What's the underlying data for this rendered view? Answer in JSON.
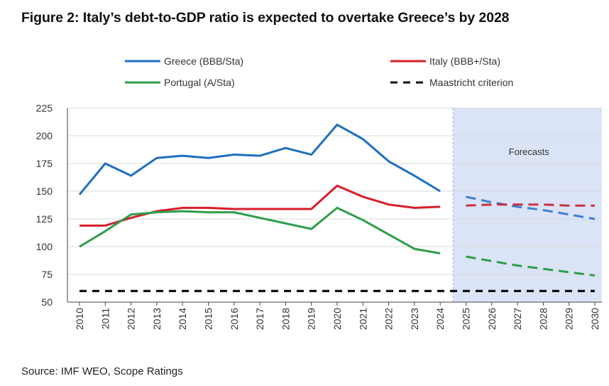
{
  "title": "Figure 2: Italy’s debt-to-GDP ratio is expected to overtake Greece’s by 2028",
  "source": "Source: IMF WEO, Scope Ratings",
  "chart_data": {
    "type": "line",
    "title": "Figure 2: Italy’s debt-to-GDP ratio is expected to overtake Greece’s by 2028",
    "xlabel": "",
    "ylabel": "",
    "ylim": [
      50,
      225
    ],
    "yticks": [
      50,
      75,
      100,
      125,
      150,
      175,
      200,
      225
    ],
    "categories": [
      "2010",
      "2011",
      "2012",
      "2013",
      "2014",
      "2015",
      "2016",
      "2017",
      "2018",
      "2019",
      "2020",
      "2021",
      "2022",
      "2023",
      "2024",
      "2025",
      "2026",
      "2027",
      "2028",
      "2029",
      "2030"
    ],
    "forecast_start": "2025",
    "forecast_label": "Forecasts",
    "grid": true,
    "legend_position": "top",
    "series": [
      {
        "name": "Greece (BBB/Sta)",
        "color": "#1f6fc0",
        "forecast_color": "#3c80d3",
        "style": "solid",
        "values": [
          147,
          175,
          164,
          180,
          182,
          180,
          183,
          182,
          189,
          183,
          210,
          197,
          177,
          164,
          150,
          145,
          140,
          136,
          133,
          129,
          125
        ]
      },
      {
        "name": "Italy (BBB+/Sta)",
        "color": "#d81e2b",
        "forecast_color": "#c93141",
        "style": "solid",
        "values": [
          119,
          119,
          126,
          132,
          135,
          135,
          134,
          134,
          134,
          134,
          155,
          145,
          138,
          135,
          136,
          137,
          138,
          138,
          138,
          137,
          137
        ]
      },
      {
        "name": "Portugal (A/Sta)",
        "color": "#2e9e4b",
        "forecast_color": "#2e9e4b",
        "style": "solid",
        "values": [
          100,
          114,
          129,
          131,
          132,
          131,
          131,
          126,
          121,
          116,
          135,
          124,
          111,
          98,
          94,
          91,
          87,
          83,
          80,
          77,
          74
        ]
      },
      {
        "name": "Maastricht criterion",
        "color": "#111111",
        "style": "dashed",
        "values": [
          60,
          60,
          60,
          60,
          60,
          60,
          60,
          60,
          60,
          60,
          60,
          60,
          60,
          60,
          60,
          60,
          60,
          60,
          60,
          60,
          60
        ]
      }
    ]
  }
}
